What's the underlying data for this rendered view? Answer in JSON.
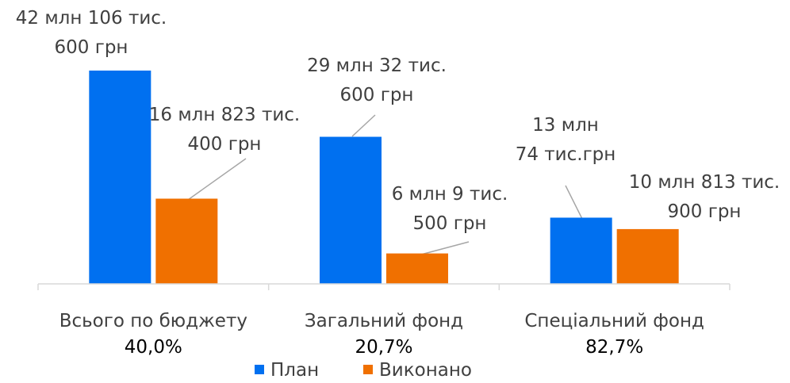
{
  "chart_data": {
    "type": "bar",
    "categories": [
      "Всього по бюджету",
      "Загальний фонд",
      "Спеціальний фонд"
    ],
    "category_percents": [
      "40,0%",
      "20,7%",
      "82,7%"
    ],
    "series": [
      {
        "name": "План",
        "color": "#0070f0",
        "values": [
          42106600,
          29032600,
          13074000
        ],
        "labels": [
          [
            "42 млн 106 тис.",
            "600 грн"
          ],
          [
            "29 млн 32 тис.",
            "600 грн"
          ],
          [
            "13 млн",
            "74 тис.грн"
          ]
        ]
      },
      {
        "name": "Виконано",
        "color": "#f07000",
        "values": [
          16823400,
          6009500,
          10813900
        ],
        "labels": [
          [
            "16 млн 823 тис.",
            "400 грн"
          ],
          [
            "6 млн 9 тис.",
            "500 грн"
          ],
          [
            "10 млн 813 тис.",
            "900 грн"
          ]
        ]
      }
    ],
    "ylim": [
      0,
      42106600
    ],
    "grid": false,
    "legend": "bottom"
  }
}
